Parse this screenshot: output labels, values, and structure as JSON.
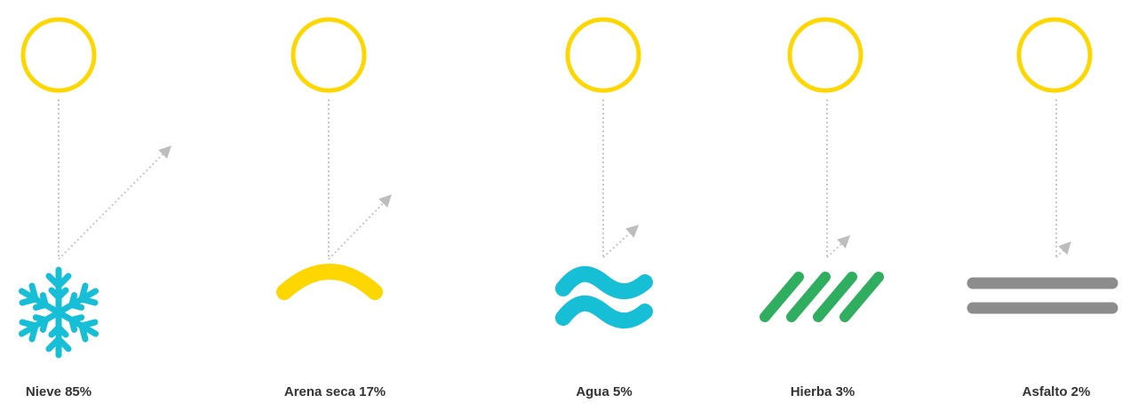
{
  "colors": {
    "sun_ring": "#FFD700",
    "guide_line": "#C8C8C8",
    "arrow_head": "#BDBDBD",
    "label_text": "#333333"
  },
  "surfaces": [
    {
      "label": "Nieve 85%",
      "icon": "snowflake-icon",
      "albedo_percent": 85,
      "icon_color": "#16BFD6"
    },
    {
      "label": "Arena seca 17%",
      "icon": "sand-dune-icon",
      "albedo_percent": 17,
      "icon_color": "#FFD700"
    },
    {
      "label": "Agua 5%",
      "icon": "water-waves-icon",
      "albedo_percent": 5,
      "icon_color": "#16BFD6"
    },
    {
      "label": "Hierba 3%",
      "icon": "grass-stripes-icon",
      "albedo_percent": 3,
      "icon_color": "#2EAE5E"
    },
    {
      "label": "Asfalto 2%",
      "icon": "asphalt-lines-icon",
      "albedo_percent": 2,
      "icon_color": "#8C8C8C"
    }
  ]
}
